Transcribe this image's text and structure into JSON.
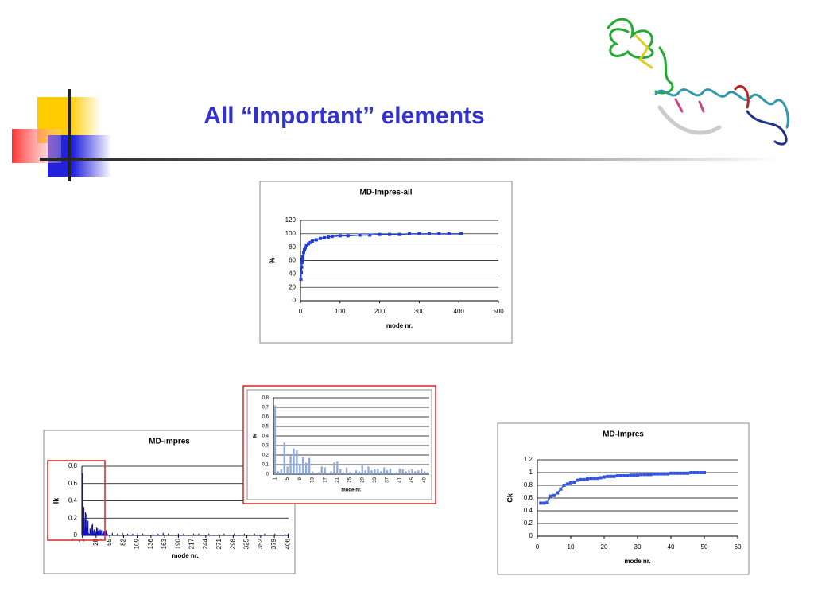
{
  "title": "All “Important” elements",
  "chart_data": [
    {
      "type": "line",
      "title": "MD-Impres-all",
      "x_label": "mode nr.",
      "y_label": "%",
      "color": "#1f3fd8",
      "grid": true,
      "x": [
        1,
        2,
        3,
        4,
        5,
        6,
        8,
        10,
        12,
        15,
        20,
        25,
        30,
        40,
        50,
        60,
        70,
        80,
        100,
        120,
        150,
        175,
        200,
        225,
        250,
        275,
        300,
        325,
        350,
        375,
        406
      ],
      "values": [
        32,
        42,
        50,
        57,
        62,
        66,
        72,
        76,
        79,
        82,
        85,
        87,
        89,
        91,
        93,
        94,
        95,
        96,
        97,
        97,
        98,
        98,
        99,
        99,
        99,
        100,
        100,
        100,
        100,
        100,
        100
      ],
      "xlim": [
        0,
        500
      ],
      "xticks": [
        0,
        100,
        200,
        300,
        400,
        500
      ],
      "ylim": [
        0,
        120
      ],
      "yticks": [
        0,
        20,
        40,
        60,
        80,
        100,
        120
      ]
    },
    {
      "type": "bar",
      "title": "MD-impres",
      "x_label": "mode nr.",
      "y_label": "Ik",
      "color": "#1010c0",
      "grid": true,
      "x_tick_rotation": 90,
      "x": [
        1,
        2,
        3,
        4,
        5,
        6,
        7,
        8,
        9,
        10,
        11,
        12,
        13,
        14,
        15,
        16,
        17,
        18,
        19,
        20,
        21,
        22,
        23,
        24,
        25,
        26,
        27,
        28,
        29,
        30,
        31,
        32,
        33,
        34,
        35,
        36,
        37,
        38,
        39,
        40,
        41,
        42,
        43,
        44,
        45,
        46,
        47,
        48,
        49,
        50,
        60,
        70,
        80,
        90,
        100,
        110,
        120,
        130,
        140,
        150,
        160,
        170,
        180,
        190,
        200,
        210,
        220,
        230,
        240,
        250,
        260,
        270,
        280,
        290,
        300,
        310,
        320,
        330,
        340,
        350,
        360,
        370,
        380,
        390,
        400,
        406
      ],
      "values": [
        0.72,
        0.03,
        0.05,
        0.33,
        0.08,
        0.19,
        0.27,
        0.25,
        0.1,
        0.18,
        0.12,
        0.17,
        0.03,
        0.01,
        0.02,
        0.08,
        0.07,
        0.01,
        0.03,
        0.12,
        0.13,
        0.05,
        0.02,
        0.07,
        0.02,
        0.01,
        0.04,
        0.03,
        0.09,
        0.04,
        0.08,
        0.04,
        0.05,
        0.06,
        0.03,
        0.07,
        0.04,
        0.06,
        0.01,
        0.02,
        0.06,
        0.05,
        0.03,
        0.04,
        0.05,
        0.03,
        0.04,
        0.06,
        0.03,
        0.02,
        0.03,
        0.02,
        0.03,
        0.02,
        0.02,
        0.03,
        0.02,
        0.01,
        0.02,
        0.02,
        0.03,
        0.02,
        0.01,
        0.02,
        0.02,
        0.01,
        0.02,
        0.02,
        0.01,
        0.02,
        0.01,
        0.02,
        0.02,
        0.01,
        0.02,
        0.01,
        0.02,
        0.01,
        0.02,
        0.01,
        0.02,
        0.01,
        0.02,
        0.01,
        0.02,
        0.02
      ],
      "xlim": [
        0,
        407
      ],
      "xticks": [
        1,
        28,
        55,
        82,
        109,
        136,
        163,
        190,
        217,
        244,
        271,
        298,
        325,
        352,
        379,
        406
      ],
      "ylim": [
        0,
        0.8
      ],
      "yticks": [
        0,
        0.2,
        0.4,
        0.6,
        0.8
      ]
    },
    {
      "type": "bar",
      "x_label": "mode-nr.",
      "y_label": "Ik",
      "color": "#8fa8e0",
      "grid": true,
      "x_tick_rotation": 90,
      "categories": [
        "1",
        null,
        null,
        null,
        "5",
        null,
        null,
        null,
        "9",
        null,
        null,
        null,
        "13",
        null,
        null,
        null,
        "17",
        null,
        null,
        null,
        "21",
        null,
        null,
        null,
        "25",
        null,
        null,
        null,
        "29",
        null,
        null,
        null,
        "33",
        null,
        null,
        null,
        "37",
        null,
        null,
        null,
        "41",
        null,
        null,
        null,
        "45",
        null,
        null,
        null,
        "49",
        null
      ],
      "values": [
        0.72,
        0.03,
        0.05,
        0.33,
        0.08,
        0.19,
        0.27,
        0.25,
        0.1,
        0.18,
        0.12,
        0.17,
        0.03,
        0.01,
        0.02,
        0.08,
        0.07,
        0.01,
        0.03,
        0.12,
        0.13,
        0.05,
        0.02,
        0.07,
        0.02,
        0.01,
        0.04,
        0.03,
        0.09,
        0.04,
        0.08,
        0.04,
        0.05,
        0.06,
        0.03,
        0.07,
        0.04,
        0.06,
        0.01,
        0.02,
        0.06,
        0.05,
        0.03,
        0.04,
        0.05,
        0.03,
        0.04,
        0.06,
        0.03,
        0.02
      ],
      "ylim": [
        0,
        0.8
      ],
      "yticks": [
        0,
        0.1,
        0.2,
        0.3,
        0.4,
        0.5,
        0.6,
        0.7,
        0.8
      ]
    },
    {
      "type": "line",
      "title": "MD-Impres",
      "x_label": "mode nr.",
      "y_label": "Ck",
      "color": "#3355e0",
      "grid": true,
      "x": [
        1,
        2,
        3,
        4,
        5,
        6,
        7,
        8,
        9,
        10,
        11,
        12,
        13,
        14,
        15,
        16,
        17,
        18,
        19,
        20,
        21,
        22,
        23,
        24,
        25,
        26,
        27,
        28,
        29,
        30,
        31,
        32,
        33,
        34,
        35,
        36,
        37,
        38,
        39,
        40,
        41,
        42,
        43,
        44,
        45,
        46,
        47,
        48,
        49,
        50
      ],
      "values": [
        0.52,
        0.52,
        0.53,
        0.63,
        0.64,
        0.68,
        0.74,
        0.8,
        0.82,
        0.84,
        0.85,
        0.88,
        0.89,
        0.89,
        0.9,
        0.91,
        0.91,
        0.91,
        0.92,
        0.93,
        0.94,
        0.94,
        0.94,
        0.95,
        0.95,
        0.95,
        0.95,
        0.96,
        0.96,
        0.96,
        0.97,
        0.97,
        0.97,
        0.97,
        0.98,
        0.98,
        0.98,
        0.98,
        0.98,
        0.99,
        0.99,
        0.99,
        0.99,
        0.99,
        0.99,
        1,
        1,
        1,
        1,
        1
      ],
      "xlim": [
        0,
        60
      ],
      "xticks": [
        0,
        10,
        20,
        30,
        40,
        50,
        60
      ],
      "ylim": [
        0,
        1.2
      ],
      "yticks": [
        0,
        0.2,
        0.4,
        0.6,
        0.8,
        1,
        1.2
      ]
    }
  ]
}
